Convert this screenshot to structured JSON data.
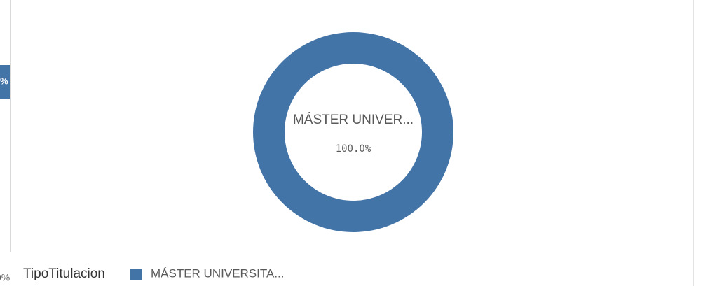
{
  "left_panel": {
    "bar_label": "%",
    "axis_label": "0%"
  },
  "chart_data": {
    "type": "pie",
    "donut": true,
    "categories": [
      "MÁSTER UNIVERSITA..."
    ],
    "values": [
      100
    ],
    "value_labels": [
      "100.0%"
    ],
    "center_label": "MÁSTER UNIVER...",
    "color": "#4374a8",
    "legend_title": "TipoTitulacion",
    "legend": "bottom-left"
  }
}
